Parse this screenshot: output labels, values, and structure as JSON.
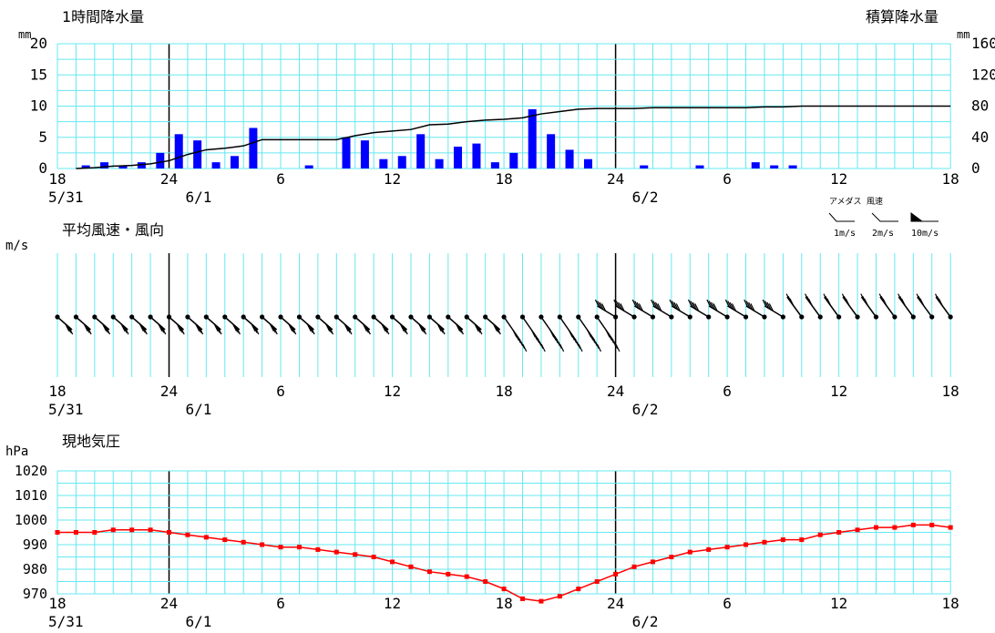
{
  "colors": {
    "grid": "#66e8f0",
    "day_line": "#000000",
    "rain_bar": "#0000ff",
    "cumulative_line": "#000000",
    "pressure": "#ff0000",
    "wind": "#000000"
  },
  "x_axis": {
    "tick_labels": [
      "18",
      "24",
      "6",
      "12",
      "18",
      "24",
      "6",
      "12",
      "18"
    ],
    "date_labels": [
      {
        "text": "5/31",
        "at": 0
      },
      {
        "text": "6/1",
        "at": 6
      },
      {
        "text": "6/2",
        "at": 30
      }
    ]
  },
  "rain_panel": {
    "title_left": "1時間降水量",
    "title_right": "積算降水量",
    "unit_left": "mm",
    "unit_right": "mm",
    "y_left_ticks": [
      "20",
      "15",
      "10",
      "5",
      "0"
    ],
    "y_right_ticks": [
      "160",
      "120",
      "80",
      "40",
      "0"
    ]
  },
  "wind_panel": {
    "title": "平均風速・風向",
    "unit": "m/s",
    "legend": {
      "title": "アメダス 風速",
      "items": [
        "1m/s",
        "2m/s",
        "10m/s"
      ]
    }
  },
  "pressure_panel": {
    "title": "現地気圧",
    "unit": "hPa",
    "y_ticks": [
      "1020",
      "1010",
      "1000",
      "990",
      "980",
      "970"
    ]
  },
  "chart_data": [
    {
      "type": "bar",
      "title": "1時間降水量",
      "ylabel": "mm",
      "ylim": [
        0,
        20
      ],
      "x_unit": "hours from 5/31 18:00",
      "x": [
        1,
        2,
        3,
        4,
        5,
        6,
        7,
        8,
        9,
        10,
        11,
        12,
        13,
        14,
        15,
        16,
        17,
        18,
        19,
        20,
        21,
        22,
        23,
        24,
        25,
        26,
        27,
        28,
        29,
        30,
        31,
        32,
        33,
        34,
        35,
        36,
        37,
        38,
        39,
        40,
        41,
        42,
        43,
        44,
        45,
        46,
        47,
        48
      ],
      "values": [
        0,
        0.5,
        1,
        0.5,
        1,
        2.5,
        5.5,
        4.5,
        1,
        2,
        6.5,
        0,
        0,
        0.5,
        0,
        5,
        4.5,
        1.5,
        2,
        5.5,
        1.5,
        3.5,
        4,
        1,
        2.5,
        9.5,
        5.5,
        3,
        1.5,
        0,
        0,
        0.5,
        0,
        0,
        0.5,
        0,
        0,
        1,
        0.5,
        0.5,
        0,
        0,
        0,
        0,
        0,
        0,
        0,
        0
      ],
      "grid": true
    },
    {
      "type": "line",
      "title": "積算降水量",
      "ylabel": "mm",
      "ylim": [
        0,
        160
      ],
      "x": [
        1,
        2,
        3,
        4,
        5,
        6,
        7,
        8,
        9,
        10,
        11,
        12,
        13,
        14,
        15,
        16,
        17,
        18,
        19,
        20,
        21,
        22,
        23,
        24,
        25,
        26,
        27,
        28,
        29,
        30,
        31,
        32,
        33,
        34,
        35,
        36,
        37,
        38,
        39,
        40,
        41,
        42,
        43,
        44,
        45,
        46,
        47,
        48
      ],
      "values": [
        0,
        1,
        3,
        4,
        6,
        10,
        18,
        24,
        26,
        29,
        37,
        37,
        37,
        37,
        37,
        42,
        46,
        48,
        50,
        56,
        57,
        60,
        62,
        63,
        65,
        70,
        73,
        76,
        77,
        77,
        77,
        78,
        78,
        78,
        78,
        78,
        78,
        79,
        79,
        80,
        80,
        80,
        80,
        80,
        80,
        80,
        80,
        80
      ]
    },
    {
      "type": "line",
      "title": "現地気圧",
      "ylabel": "hPa",
      "ylim": [
        970,
        1020
      ],
      "x": [
        0,
        1,
        2,
        3,
        4,
        5,
        6,
        7,
        8,
        9,
        10,
        11,
        12,
        13,
        14,
        15,
        16,
        17,
        18,
        19,
        20,
        21,
        22,
        23,
        24,
        25,
        26,
        27,
        28,
        29,
        30,
        31,
        32,
        33,
        34,
        35,
        36,
        37,
        38,
        39,
        40,
        41,
        42,
        43,
        44,
        45,
        46,
        47,
        48
      ],
      "values": [
        995,
        995,
        995,
        996,
        996,
        996,
        995,
        994,
        993,
        992,
        991,
        990,
        989,
        989,
        988,
        987,
        986,
        985,
        983,
        981,
        979,
        978,
        977,
        975,
        972,
        968,
        967,
        969,
        972,
        975,
        978,
        981,
        983,
        985,
        987,
        988,
        989,
        990,
        991,
        992,
        992,
        994,
        995,
        996,
        997,
        997,
        998,
        998,
        997
      ],
      "grid": true
    }
  ]
}
